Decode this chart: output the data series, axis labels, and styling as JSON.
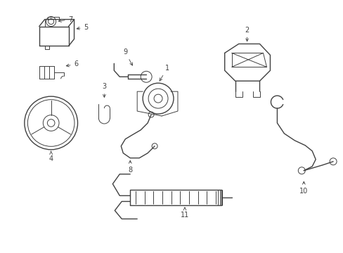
{
  "background_color": "#ffffff",
  "line_color": "#404040",
  "label_color": "#000000",
  "fig_width": 4.89,
  "fig_height": 3.6,
  "dpi": 100
}
